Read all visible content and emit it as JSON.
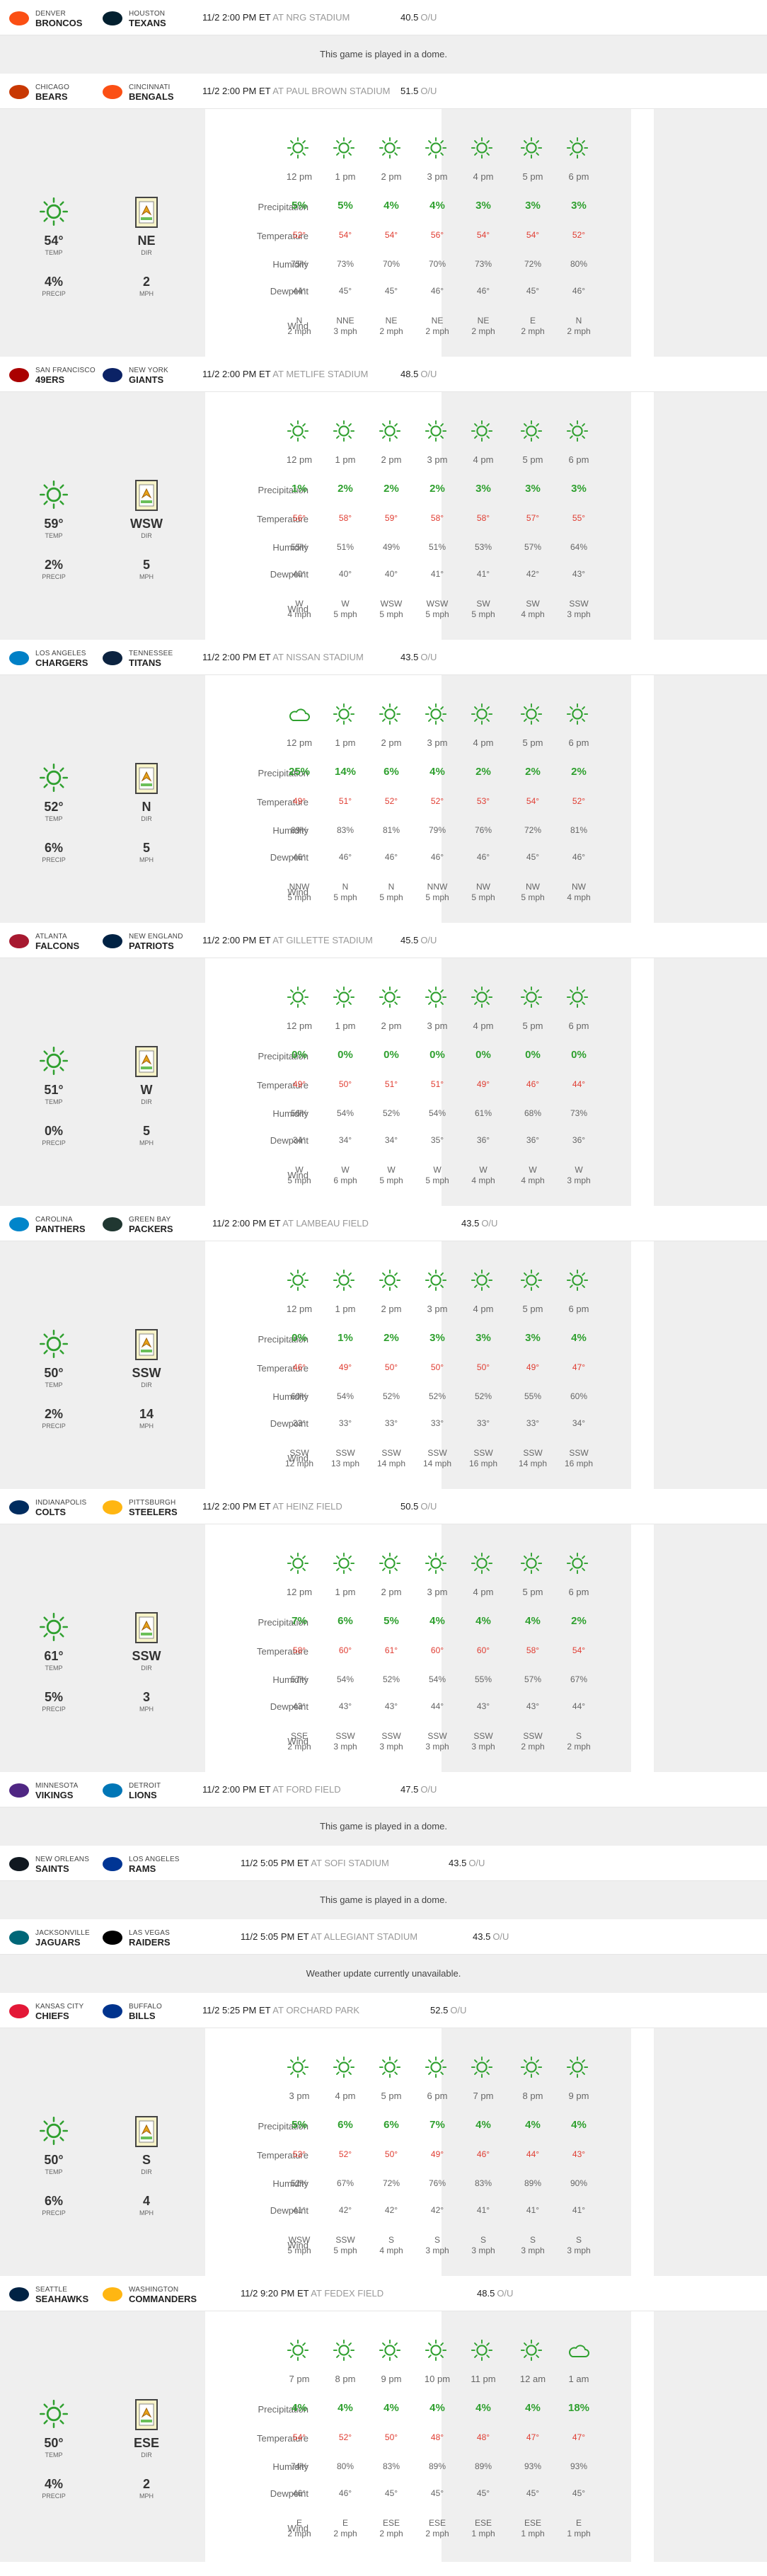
{
  "labels": {
    "precip": "Precipitation",
    "temp": "Temperature",
    "humidity": "Humidity",
    "dewpoint": "Dewpoint",
    "wind": "Wind",
    "temp_short": "TEMP",
    "dir_short": "DIR",
    "precip_short": "PRECIP",
    "mph": "MPH",
    "ou": "O/U",
    "at": "AT"
  },
  "colors": {
    "precip": "#2fa02f",
    "temp": "#e03c31",
    "shade": "#efefef",
    "sun": "#2fa02f"
  },
  "games": [
    {
      "away_city": "DENVER",
      "away_name": "BRONCOS",
      "away_color": "#fb4f14",
      "home_city": "HOUSTON",
      "home_name": "TEXANS",
      "home_color": "#03202f",
      "time": "11/2 2:00 PM ET",
      "stadium": "NRG STADIUM",
      "ou": "40.5",
      "message": "This game is played in a dome."
    },
    {
      "away_city": "CHICAGO",
      "away_name": "BEARS",
      "away_color": "#c83803",
      "home_city": "CINCINNATI",
      "home_name": "BENGALS",
      "home_color": "#fb4f14",
      "time": "11/2 2:00 PM ET",
      "stadium": "PAUL BROWN STADIUM",
      "ou": "51.5",
      "current": {
        "temp": "54°",
        "dir": "NE",
        "precip": "4%",
        "mph": "2"
      },
      "hours": [
        {
          "hour": "12 pm",
          "icon": "sun-icon",
          "precip": "5%",
          "temp": "52°",
          "humidity": "75%",
          "dewpoint": "44°",
          "wind_dir": "N",
          "wind_speed": "2 mph"
        },
        {
          "hour": "1 pm",
          "icon": "sun-icon",
          "precip": "5%",
          "temp": "54°",
          "humidity": "73%",
          "dewpoint": "45°",
          "wind_dir": "NNE",
          "wind_speed": "3 mph"
        },
        {
          "hour": "2 pm",
          "icon": "sun-icon",
          "precip": "4%",
          "temp": "54°",
          "humidity": "70%",
          "dewpoint": "45°",
          "wind_dir": "NE",
          "wind_speed": "2 mph"
        },
        {
          "hour": "3 pm",
          "icon": "sun-icon",
          "precip": "4%",
          "temp": "56°",
          "humidity": "70%",
          "dewpoint": "46°",
          "wind_dir": "NE",
          "wind_speed": "2 mph"
        },
        {
          "hour": "4 pm",
          "icon": "sun-icon",
          "precip": "3%",
          "temp": "54°",
          "humidity": "73%",
          "dewpoint": "46°",
          "wind_dir": "NE",
          "wind_speed": "2 mph"
        },
        {
          "hour": "5 pm",
          "icon": "sun-icon",
          "precip": "3%",
          "temp": "54°",
          "humidity": "72%",
          "dewpoint": "45°",
          "wind_dir": "E",
          "wind_speed": "2 mph"
        },
        {
          "hour": "6 pm",
          "icon": "sun-icon",
          "precip": "3%",
          "temp": "52°",
          "humidity": "80%",
          "dewpoint": "46°",
          "wind_dir": "N",
          "wind_speed": "2 mph"
        }
      ]
    },
    {
      "away_city": "SAN FRANCISCO",
      "away_name": "49ERS",
      "away_color": "#aa0000",
      "home_city": "NEW YORK",
      "home_name": "GIANTS",
      "home_color": "#0b2265",
      "time": "11/2 2:00 PM ET",
      "stadium": "METLIFE STADIUM",
      "ou": "48.5",
      "current": {
        "temp": "59°",
        "dir": "WSW",
        "precip": "2%",
        "mph": "5"
      },
      "hours": [
        {
          "hour": "12 pm",
          "icon": "sun-icon",
          "precip": "1%",
          "temp": "56°",
          "humidity": "55%",
          "dewpoint": "40°",
          "wind_dir": "W",
          "wind_speed": "4 mph"
        },
        {
          "hour": "1 pm",
          "icon": "sun-icon",
          "precip": "2%",
          "temp": "58°",
          "humidity": "51%",
          "dewpoint": "40°",
          "wind_dir": "W",
          "wind_speed": "5 mph"
        },
        {
          "hour": "2 pm",
          "icon": "sun-icon",
          "precip": "2%",
          "temp": "59°",
          "humidity": "49%",
          "dewpoint": "40°",
          "wind_dir": "WSW",
          "wind_speed": "5 mph"
        },
        {
          "hour": "3 pm",
          "icon": "sun-icon",
          "precip": "2%",
          "temp": "58°",
          "humidity": "51%",
          "dewpoint": "41°",
          "wind_dir": "WSW",
          "wind_speed": "5 mph"
        },
        {
          "hour": "4 pm",
          "icon": "sun-icon",
          "precip": "3%",
          "temp": "58°",
          "humidity": "53%",
          "dewpoint": "41°",
          "wind_dir": "SW",
          "wind_speed": "5 mph"
        },
        {
          "hour": "5 pm",
          "icon": "sun-icon",
          "precip": "3%",
          "temp": "57°",
          "humidity": "57%",
          "dewpoint": "42°",
          "wind_dir": "SW",
          "wind_speed": "4 mph"
        },
        {
          "hour": "6 pm",
          "icon": "sun-icon",
          "precip": "3%",
          "temp": "55°",
          "humidity": "64%",
          "dewpoint": "43°",
          "wind_dir": "SSW",
          "wind_speed": "3 mph"
        }
      ]
    },
    {
      "away_city": "LOS ANGELES",
      "away_name": "CHARGERS",
      "away_color": "#0080c6",
      "home_city": "TENNESSEE",
      "home_name": "TITANS",
      "home_color": "#0c2340",
      "time": "11/2 2:00 PM ET",
      "stadium": "NISSAN STADIUM",
      "ou": "43.5",
      "current": {
        "temp": "52°",
        "dir": "N",
        "precip": "6%",
        "mph": "5"
      },
      "hours": [
        {
          "hour": "12 pm",
          "icon": "cloud-icon",
          "precip": "25%",
          "temp": "49°",
          "humidity": "89%",
          "dewpoint": "46°",
          "wind_dir": "NNW",
          "wind_speed": "5 mph"
        },
        {
          "hour": "1 pm",
          "icon": "sun-icon",
          "precip": "14%",
          "temp": "51°",
          "humidity": "83%",
          "dewpoint": "46°",
          "wind_dir": "N",
          "wind_speed": "5 mph"
        },
        {
          "hour": "2 pm",
          "icon": "sun-icon",
          "precip": "6%",
          "temp": "52°",
          "humidity": "81%",
          "dewpoint": "46°",
          "wind_dir": "N",
          "wind_speed": "5 mph"
        },
        {
          "hour": "3 pm",
          "icon": "sun-icon",
          "precip": "4%",
          "temp": "52°",
          "humidity": "79%",
          "dewpoint": "46°",
          "wind_dir": "NNW",
          "wind_speed": "5 mph"
        },
        {
          "hour": "4 pm",
          "icon": "sun-icon",
          "precip": "2%",
          "temp": "53°",
          "humidity": "76%",
          "dewpoint": "46°",
          "wind_dir": "NW",
          "wind_speed": "5 mph"
        },
        {
          "hour": "5 pm",
          "icon": "sun-icon",
          "precip": "2%",
          "temp": "54°",
          "humidity": "72%",
          "dewpoint": "45°",
          "wind_dir": "NW",
          "wind_speed": "5 mph"
        },
        {
          "hour": "6 pm",
          "icon": "sun-icon",
          "precip": "2%",
          "temp": "52°",
          "humidity": "81%",
          "dewpoint": "46°",
          "wind_dir": "NW",
          "wind_speed": "4 mph"
        }
      ]
    },
    {
      "away_city": "ATLANTA",
      "away_name": "FALCONS",
      "away_color": "#a71930",
      "home_city": "NEW ENGLAND",
      "home_name": "PATRIOTS",
      "home_color": "#002244",
      "time": "11/2 2:00 PM ET",
      "stadium": "GILLETTE STADIUM",
      "ou": "45.5",
      "current": {
        "temp": "51°",
        "dir": "W",
        "precip": "0%",
        "mph": "5"
      },
      "hours": [
        {
          "hour": "12 pm",
          "icon": "sun-icon",
          "precip": "0%",
          "temp": "49°",
          "humidity": "56%",
          "dewpoint": "34°",
          "wind_dir": "W",
          "wind_speed": "5 mph"
        },
        {
          "hour": "1 pm",
          "icon": "sun-icon",
          "precip": "0%",
          "temp": "50°",
          "humidity": "54%",
          "dewpoint": "34°",
          "wind_dir": "W",
          "wind_speed": "6 mph"
        },
        {
          "hour": "2 pm",
          "icon": "sun-icon",
          "precip": "0%",
          "temp": "51°",
          "humidity": "52%",
          "dewpoint": "34°",
          "wind_dir": "W",
          "wind_speed": "5 mph"
        },
        {
          "hour": "3 pm",
          "icon": "sun-icon",
          "precip": "0%",
          "temp": "51°",
          "humidity": "54%",
          "dewpoint": "35°",
          "wind_dir": "W",
          "wind_speed": "5 mph"
        },
        {
          "hour": "4 pm",
          "icon": "sun-icon",
          "precip": "0%",
          "temp": "49°",
          "humidity": "61%",
          "dewpoint": "36°",
          "wind_dir": "W",
          "wind_speed": "4 mph"
        },
        {
          "hour": "5 pm",
          "icon": "sun-icon",
          "precip": "0%",
          "temp": "46°",
          "humidity": "68%",
          "dewpoint": "36°",
          "wind_dir": "W",
          "wind_speed": "4 mph"
        },
        {
          "hour": "6 pm",
          "icon": "sun-icon",
          "precip": "0%",
          "temp": "44°",
          "humidity": "73%",
          "dewpoint": "36°",
          "wind_dir": "W",
          "wind_speed": "3 mph"
        }
      ]
    },
    {
      "away_city": "CAROLINA",
      "away_name": "PANTHERS",
      "away_color": "#0085ca",
      "home_city": "GREEN BAY",
      "home_name": "PACKERS",
      "home_color": "#203731",
      "time": "11/2 2:00 PM ET",
      "stadium": "LAMBEAU FIELD",
      "ou": "43.5",
      "current": {
        "temp": "50°",
        "dir": "SSW",
        "precip": "2%",
        "mph": "14"
      },
      "hours": [
        {
          "hour": "12 pm",
          "icon": "sun-icon",
          "precip": "0%",
          "temp": "46°",
          "humidity": "60%",
          "dewpoint": "33°",
          "wind_dir": "SSW",
          "wind_speed": "12 mph"
        },
        {
          "hour": "1 pm",
          "icon": "sun-icon",
          "precip": "1%",
          "temp": "49°",
          "humidity": "54%",
          "dewpoint": "33°",
          "wind_dir": "SSW",
          "wind_speed": "13 mph"
        },
        {
          "hour": "2 pm",
          "icon": "sun-icon",
          "precip": "2%",
          "temp": "50°",
          "humidity": "52%",
          "dewpoint": "33°",
          "wind_dir": "SSW",
          "wind_speed": "14 mph"
        },
        {
          "hour": "3 pm",
          "icon": "sun-icon",
          "precip": "3%",
          "temp": "50°",
          "humidity": "52%",
          "dewpoint": "33°",
          "wind_dir": "SSW",
          "wind_speed": "14 mph"
        },
        {
          "hour": "4 pm",
          "icon": "sun-icon",
          "precip": "3%",
          "temp": "50°",
          "humidity": "52%",
          "dewpoint": "33°",
          "wind_dir": "SSW",
          "wind_speed": "16 mph"
        },
        {
          "hour": "5 pm",
          "icon": "sun-icon",
          "precip": "3%",
          "temp": "49°",
          "humidity": "55%",
          "dewpoint": "33°",
          "wind_dir": "SSW",
          "wind_speed": "14 mph"
        },
        {
          "hour": "6 pm",
          "icon": "sun-icon",
          "precip": "4%",
          "temp": "47°",
          "humidity": "60%",
          "dewpoint": "34°",
          "wind_dir": "SSW",
          "wind_speed": "16 mph"
        }
      ]
    },
    {
      "away_city": "INDIANAPOLIS",
      "away_name": "COLTS",
      "away_color": "#002c5f",
      "home_city": "PITTSBURGH",
      "home_name": "STEELERS",
      "home_color": "#ffb612",
      "time": "11/2 2:00 PM ET",
      "stadium": "HEINZ FIELD",
      "ou": "50.5",
      "current": {
        "temp": "61°",
        "dir": "SSW",
        "precip": "5%",
        "mph": "3"
      },
      "hours": [
        {
          "hour": "12 pm",
          "icon": "sun-icon",
          "precip": "7%",
          "temp": "58°",
          "humidity": "57%",
          "dewpoint": "43°",
          "wind_dir": "SSE",
          "wind_speed": "2 mph"
        },
        {
          "hour": "1 pm",
          "icon": "sun-icon",
          "precip": "6%",
          "temp": "60°",
          "humidity": "54%",
          "dewpoint": "43°",
          "wind_dir": "SSW",
          "wind_speed": "3 mph"
        },
        {
          "hour": "2 pm",
          "icon": "sun-icon",
          "precip": "5%",
          "temp": "61°",
          "humidity": "52%",
          "dewpoint": "43°",
          "wind_dir": "SSW",
          "wind_speed": "3 mph"
        },
        {
          "hour": "3 pm",
          "icon": "sun-icon",
          "precip": "4%",
          "temp": "60°",
          "humidity": "54%",
          "dewpoint": "44°",
          "wind_dir": "SSW",
          "wind_speed": "3 mph"
        },
        {
          "hour": "4 pm",
          "icon": "sun-icon",
          "precip": "4%",
          "temp": "60°",
          "humidity": "55%",
          "dewpoint": "43°",
          "wind_dir": "SSW",
          "wind_speed": "3 mph"
        },
        {
          "hour": "5 pm",
          "icon": "sun-icon",
          "precip": "4%",
          "temp": "58°",
          "humidity": "57%",
          "dewpoint": "43°",
          "wind_dir": "SSW",
          "wind_speed": "2 mph"
        },
        {
          "hour": "6 pm",
          "icon": "sun-icon",
          "precip": "2%",
          "temp": "54°",
          "humidity": "67%",
          "dewpoint": "44°",
          "wind_dir": "S",
          "wind_speed": "2 mph"
        }
      ]
    },
    {
      "away_city": "MINNESOTA",
      "away_name": "VIKINGS",
      "away_color": "#4f2683",
      "home_city": "DETROIT",
      "home_name": "LIONS",
      "home_color": "#0076b6",
      "time": "11/2 2:00 PM ET",
      "stadium": "FORD FIELD",
      "ou": "47.5",
      "message": "This game is played in a dome."
    },
    {
      "away_city": "NEW ORLEANS",
      "away_name": "SAINTS",
      "away_color": "#101820",
      "home_city": "LOS ANGELES",
      "home_name": "RAMS",
      "home_color": "#003594",
      "time": "11/2 5:05 PM ET",
      "stadium": "SOFI STADIUM",
      "ou": "43.5",
      "message": "This game is played in a dome."
    },
    {
      "away_city": "JACKSONVILLE",
      "away_name": "JAGUARS",
      "away_color": "#006778",
      "home_city": "LAS VEGAS",
      "home_name": "RAIDERS",
      "home_color": "#000000",
      "time": "11/2 5:05 PM ET",
      "stadium": "ALLEGIANT STADIUM",
      "ou": "43.5",
      "message": "Weather update currently unavailable."
    },
    {
      "away_city": "KANSAS CITY",
      "away_name": "CHIEFS",
      "away_color": "#e31837",
      "home_city": "BUFFALO",
      "home_name": "BILLS",
      "home_color": "#00338d",
      "time": "11/2 5:25 PM ET",
      "stadium": "ORCHARD PARK",
      "ou": "52.5",
      "current": {
        "temp": "50°",
        "dir": "S",
        "precip": "6%",
        "mph": "4"
      },
      "hours": [
        {
          "hour": "3 pm",
          "icon": "sun-icon",
          "precip": "5%",
          "temp": "53°",
          "humidity": "52%",
          "dewpoint": "41°",
          "wind_dir": "WSW",
          "wind_speed": "5 mph"
        },
        {
          "hour": "4 pm",
          "icon": "sun-icon",
          "precip": "6%",
          "temp": "52°",
          "humidity": "67%",
          "dewpoint": "42°",
          "wind_dir": "SSW",
          "wind_speed": "5 mph"
        },
        {
          "hour": "5 pm",
          "icon": "sun-icon",
          "precip": "6%",
          "temp": "50°",
          "humidity": "72%",
          "dewpoint": "42°",
          "wind_dir": "S",
          "wind_speed": "4 mph"
        },
        {
          "hour": "6 pm",
          "icon": "sun-icon",
          "precip": "7%",
          "temp": "49°",
          "humidity": "76%",
          "dewpoint": "42°",
          "wind_dir": "S",
          "wind_speed": "3 mph"
        },
        {
          "hour": "7 pm",
          "icon": "sun-icon",
          "precip": "4%",
          "temp": "46°",
          "humidity": "83%",
          "dewpoint": "41°",
          "wind_dir": "S",
          "wind_speed": "3 mph"
        },
        {
          "hour": "8 pm",
          "icon": "sun-icon",
          "precip": "4%",
          "temp": "44°",
          "humidity": "89%",
          "dewpoint": "41°",
          "wind_dir": "S",
          "wind_speed": "3 mph"
        },
        {
          "hour": "9 pm",
          "icon": "sun-icon",
          "precip": "4%",
          "temp": "43°",
          "humidity": "90%",
          "dewpoint": "41°",
          "wind_dir": "S",
          "wind_speed": "3 mph"
        }
      ]
    },
    {
      "away_city": "SEATTLE",
      "away_name": "SEAHAWKS",
      "away_color": "#002244",
      "home_city": "WASHINGTON",
      "home_name": "COMMANDERS",
      "home_color": "#ffb612",
      "time": "11/2 9:20 PM ET",
      "stadium": "FEDEX FIELD",
      "ou": "48.5",
      "current": {
        "temp": "50°",
        "dir": "ESE",
        "precip": "4%",
        "mph": "2"
      },
      "hours": [
        {
          "hour": "7 pm",
          "icon": "sun-icon",
          "precip": "4%",
          "temp": "54°",
          "humidity": "74%",
          "dewpoint": "46°",
          "wind_dir": "E",
          "wind_speed": "2 mph"
        },
        {
          "hour": "8 pm",
          "icon": "sun-icon",
          "precip": "4%",
          "temp": "52°",
          "humidity": "80%",
          "dewpoint": "46°",
          "wind_dir": "E",
          "wind_speed": "2 mph"
        },
        {
          "hour": "9 pm",
          "icon": "sun-icon",
          "precip": "4%",
          "temp": "50°",
          "humidity": "83%",
          "dewpoint": "45°",
          "wind_dir": "ESE",
          "wind_speed": "2 mph"
        },
        {
          "hour": "10 pm",
          "icon": "sun-icon",
          "precip": "4%",
          "temp": "48°",
          "humidity": "89%",
          "dewpoint": "45°",
          "wind_dir": "ESE",
          "wind_speed": "2 mph"
        },
        {
          "hour": "11 pm",
          "icon": "sun-icon",
          "precip": "4%",
          "temp": "48°",
          "humidity": "89%",
          "dewpoint": "45°",
          "wind_dir": "ESE",
          "wind_speed": "1 mph"
        },
        {
          "hour": "12 am",
          "icon": "sun-icon",
          "precip": "4%",
          "temp": "47°",
          "humidity": "93%",
          "dewpoint": "45°",
          "wind_dir": "ESE",
          "wind_speed": "1 mph"
        },
        {
          "hour": "1 am",
          "icon": "cloud-icon",
          "precip": "18%",
          "temp": "47°",
          "humidity": "93%",
          "dewpoint": "45°",
          "wind_dir": "E",
          "wind_speed": "1 mph"
        }
      ]
    }
  ]
}
